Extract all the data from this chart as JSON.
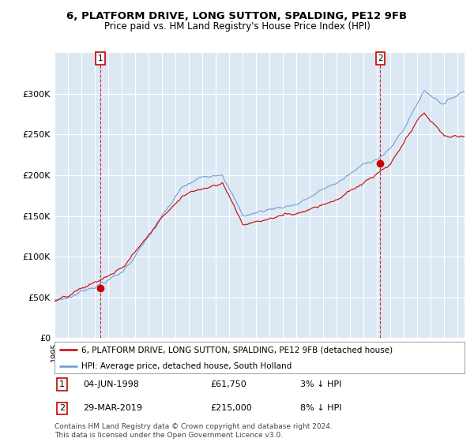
{
  "title": "6, PLATFORM DRIVE, LONG SUTTON, SPALDING, PE12 9FB",
  "subtitle": "Price paid vs. HM Land Registry's House Price Index (HPI)",
  "legend_label_red": "6, PLATFORM DRIVE, LONG SUTTON, SPALDING, PE12 9FB (detached house)",
  "legend_label_blue": "HPI: Average price, detached house, South Holland",
  "annotation1_date": "04-JUN-1998",
  "annotation1_price": "£61,750",
  "annotation1_hpi": "3% ↓ HPI",
  "annotation1_year": 1998.43,
  "annotation1_value": 61750,
  "annotation2_date": "29-MAR-2019",
  "annotation2_price": "£215,000",
  "annotation2_hpi": "8% ↓ HPI",
  "annotation2_year": 2019.24,
  "annotation2_value": 215000,
  "footer": "Contains HM Land Registry data © Crown copyright and database right 2024.\nThis data is licensed under the Open Government Licence v3.0.",
  "ylim": [
    0,
    350000
  ],
  "xlim_start": 1995.0,
  "xlim_end": 2025.5,
  "background_color": "#ffffff",
  "plot_bg_color": "#dce9f5",
  "grid_color": "#ffffff",
  "red_color": "#cc0000",
  "blue_color": "#6699cc"
}
